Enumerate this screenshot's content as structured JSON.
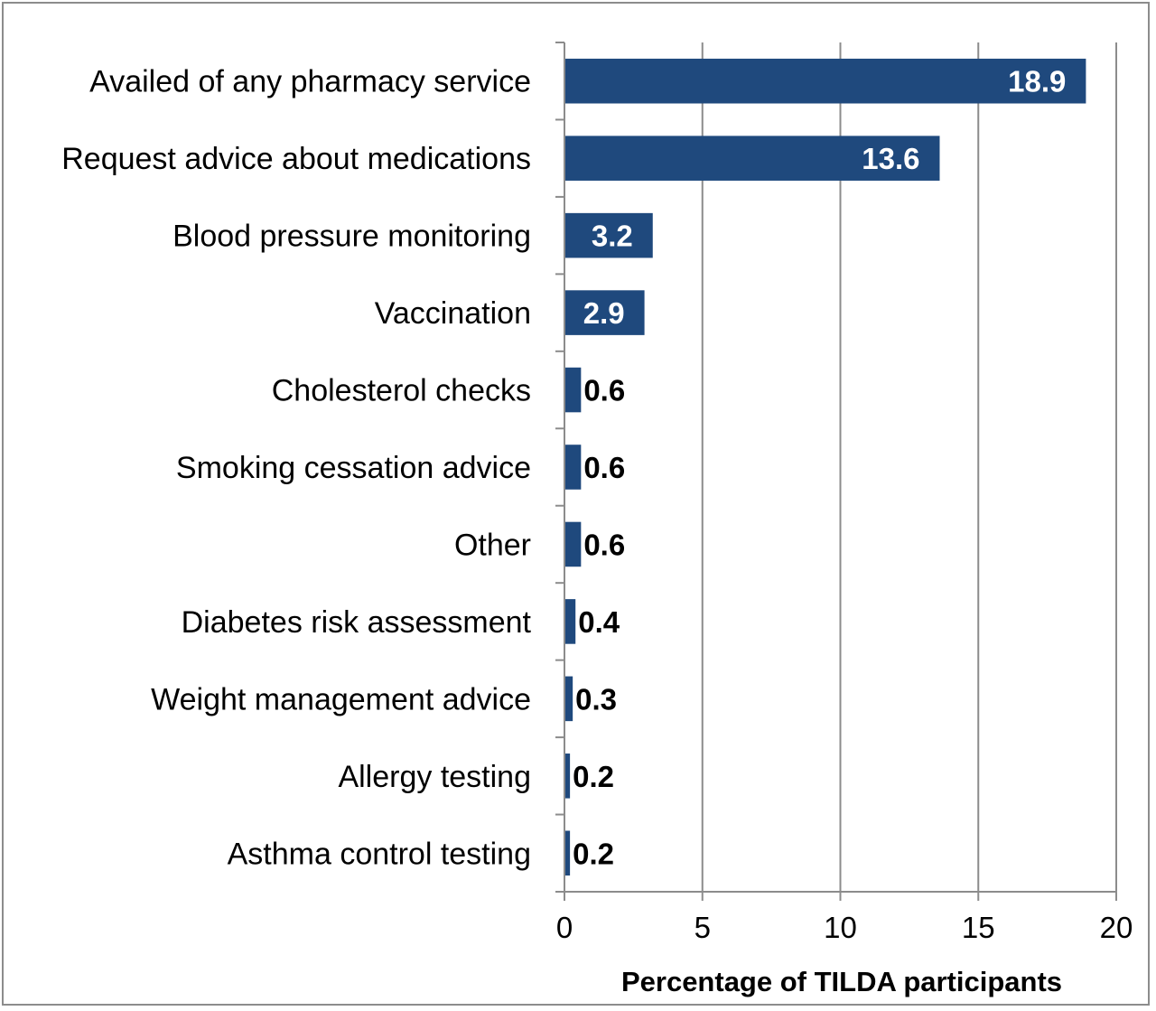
{
  "chart_data": {
    "type": "bar",
    "orientation": "horizontal",
    "categories": [
      "Availed of any pharmacy service",
      "Request advice about medications",
      "Blood pressure monitoring",
      "Vaccination",
      "Cholesterol checks",
      "Smoking cessation advice",
      "Other",
      "Diabetes risk assessment",
      "Weight management advice",
      "Allergy testing",
      "Asthma control testing"
    ],
    "values": [
      18.9,
      13.6,
      3.2,
      2.9,
      0.6,
      0.6,
      0.6,
      0.4,
      0.3,
      0.2,
      0.2
    ],
    "value_labels": [
      "18.9",
      "13.6",
      "3.2",
      "2.9",
      "0.6",
      "0.6",
      "0.6",
      "0.4",
      "0.3",
      "0.2",
      "0.2"
    ],
    "xlabel": "Percentage of TILDA participants",
    "ylabel": "",
    "title": "",
    "xlim": [
      0,
      20
    ],
    "xticks": [
      0,
      5,
      10,
      15,
      20
    ],
    "grid": "vertical",
    "bar_color": "#1f497d",
    "gridline_color": "#8c8c8c",
    "inside_label_color": "#ffffff",
    "outside_label_color": "#000000"
  }
}
